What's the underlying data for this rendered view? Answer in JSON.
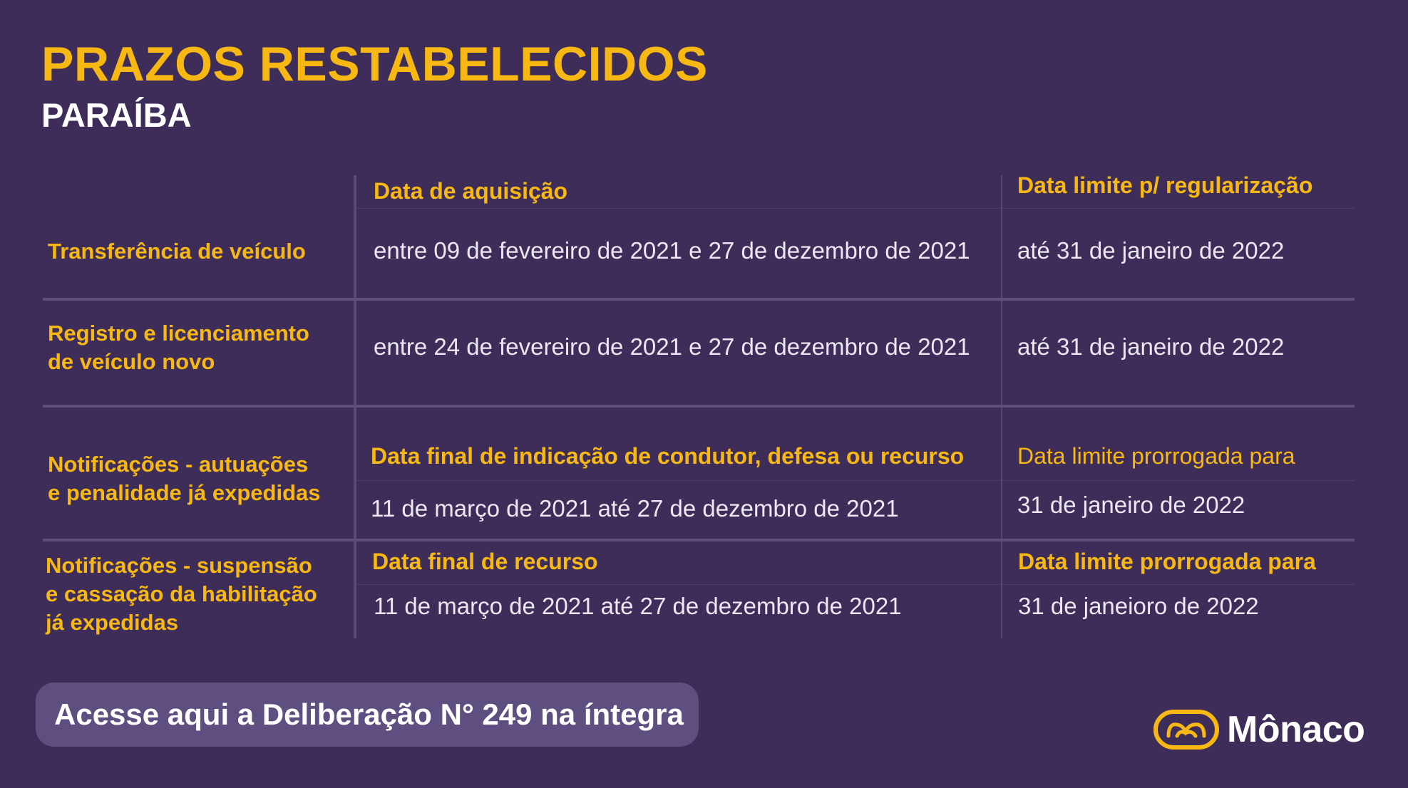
{
  "header": {
    "title": "PRAZOS RESTABELECIDOS",
    "subtitle": "PARAÍBA"
  },
  "table": {
    "rows": [
      {
        "label_lines": [
          "Transferência de veículo"
        ],
        "col1_header": "Data de aquisição",
        "col1_value": "entre 09 de fevereiro de 2021 e 27 de dezembro de 2021",
        "col2_header": "Data limite p/ regularização",
        "col2_value": "até 31 de janeiro de 2022"
      },
      {
        "label_lines": [
          "Registro e licenciamento",
          "de veículo novo"
        ],
        "col1_value": "entre 24 de fevereiro de 2021 e 27 de dezembro de 2021",
        "col2_value": "até 31 de janeiro de 2022"
      },
      {
        "label_lines": [
          "Notificações - autuações",
          "e penalidade já expedidas"
        ],
        "col1_header": "Data final de indicação de condutor, defesa ou recurso",
        "col1_value": "11 de março de 2021 até 27 de dezembro de 2021",
        "col2_header": "Data limite prorrogada para",
        "col2_value": "31 de janeiro de 2022"
      },
      {
        "label_lines": [
          "Notificações - suspensão",
          "e cassação da habilitação",
          "já expedidas"
        ],
        "col1_header": "Data final de recurso",
        "col1_value": "11 de março de 2021 até 27 de dezembro de 2021",
        "col2_header": "Data limite prorrogada para",
        "col2_value": "31 de janeioro de 2022"
      }
    ]
  },
  "cta": {
    "label": "Acesse aqui a Deliberação N° 249 na íntegra"
  },
  "logo": {
    "text": "Mônaco",
    "icon": "monaco-logo-icon"
  },
  "colors": {
    "background": "#3d2d58",
    "accent": "#f7b814",
    "text": "#ffffff",
    "cta_background": "#5f4f80"
  }
}
